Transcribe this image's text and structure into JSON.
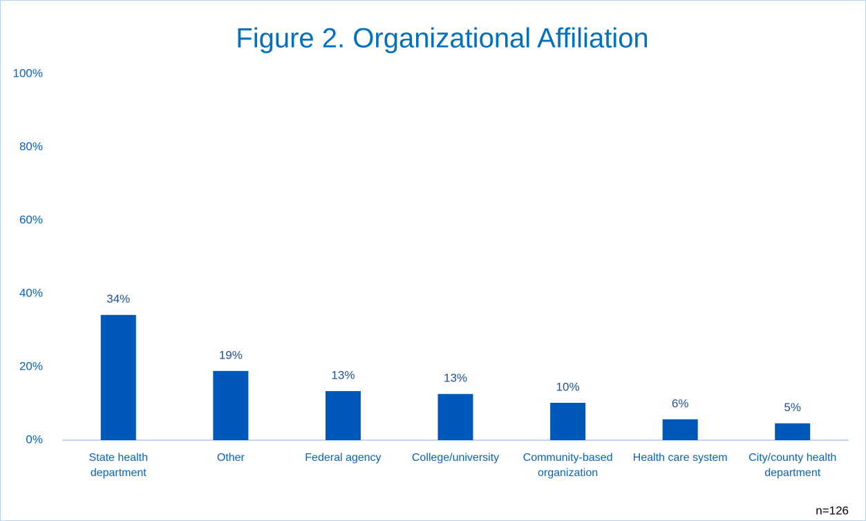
{
  "chart_data": {
    "type": "bar",
    "title": "Figure 2. Organizational Affiliation",
    "categories": [
      "State health department",
      "Other",
      "Federal agency",
      "College/university",
      "Community-based organization",
      "Health care system",
      "City/county health department"
    ],
    "values": [
      34.2,
      18.9,
      13.4,
      12.6,
      10.2,
      5.7,
      4.6
    ],
    "value_labels": [
      "34%",
      "19%",
      "13%",
      "13%",
      "10%",
      "6%",
      "5%"
    ],
    "color": "#0059b8",
    "ylim": [
      0,
      100
    ],
    "yticks": [
      {
        "value": 0,
        "label": "0%"
      },
      {
        "value": 20,
        "label": "20%"
      },
      {
        "value": 40,
        "label": "40%"
      },
      {
        "value": 60,
        "label": "60%"
      },
      {
        "value": 80,
        "label": "80%"
      },
      {
        "value": 100,
        "label": "100%"
      }
    ],
    "grid": false,
    "annotation": "n=126"
  }
}
